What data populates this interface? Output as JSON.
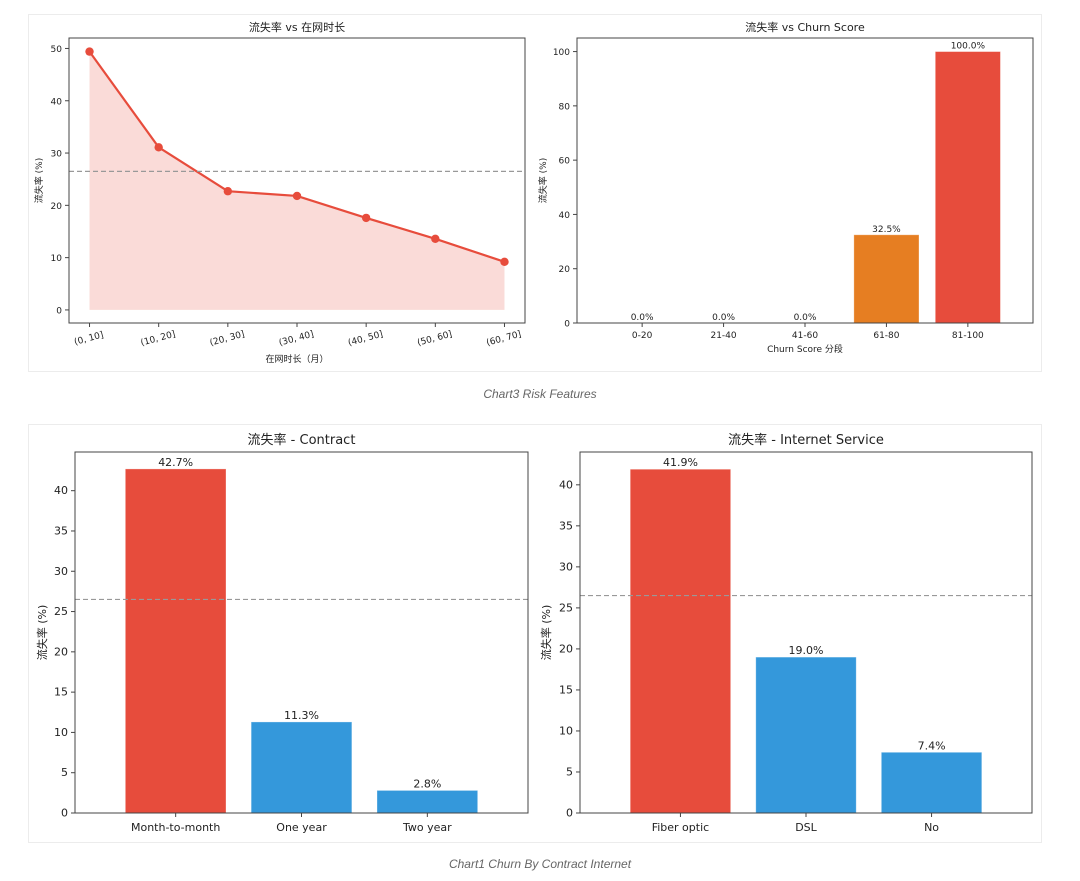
{
  "sections": [
    {
      "caption": "Chart3 Risk Features"
    },
    {
      "caption": "Chart1 Churn By Contract Internet"
    }
  ],
  "colors": {
    "red": "#e74c3c",
    "orange": "#e67e22",
    "blue": "#3498db",
    "fill": "#fadbd8",
    "reference": "#999999",
    "axis": "#444444"
  },
  "chart_data": [
    {
      "type": "line",
      "title": "流失率 vs 在网时长",
      "xlabel": "在网时长（月）",
      "ylabel": "流失率 (%)",
      "categories": [
        "(0, 10]",
        "(10, 20]",
        "(20, 30]",
        "(30, 40]",
        "(40, 50]",
        "(50, 60]",
        "(60, 70]"
      ],
      "values": [
        49.4,
        31.1,
        22.7,
        21.8,
        17.6,
        13.6,
        9.2
      ],
      "yticks": [
        0,
        10,
        20,
        30,
        40,
        50
      ],
      "ylim": [
        -2.5,
        52
      ],
      "reference_line": 26.5,
      "filled_area": true,
      "grid": false,
      "color": "#e74c3c"
    },
    {
      "type": "bar",
      "title": "流失率 vs Churn Score",
      "xlabel": "Churn Score 分段",
      "ylabel": "流失率 (%)",
      "categories": [
        "0-20",
        "21-40",
        "41-60",
        "61-80",
        "81-100"
      ],
      "values": [
        0.0,
        0.0,
        0.0,
        32.5,
        100.0
      ],
      "data_labels": [
        "0.0%",
        "0.0%",
        "0.0%",
        "32.5%",
        "100.0%"
      ],
      "bar_colors": [
        "#e74c3c",
        "#e74c3c",
        "#e74c3c",
        "#e67e22",
        "#e74c3c"
      ],
      "yticks": [
        0,
        20,
        40,
        60,
        80,
        100
      ],
      "ylim": [
        0,
        105
      ],
      "grid": false
    },
    {
      "type": "bar",
      "title": "流失率 - Contract",
      "xlabel": "",
      "ylabel": "流失率 (%)",
      "categories": [
        "Month-to-month",
        "One year",
        "Two year"
      ],
      "values": [
        42.7,
        11.3,
        2.8
      ],
      "data_labels": [
        "42.7%",
        "11.3%",
        "2.8%"
      ],
      "bar_colors": [
        "#e74c3c",
        "#3498db",
        "#3498db"
      ],
      "yticks": [
        0,
        5,
        10,
        15,
        20,
        25,
        30,
        35,
        40
      ],
      "ylim": [
        0,
        44.8
      ],
      "reference_line": 26.5,
      "grid": false
    },
    {
      "type": "bar",
      "title": "流失率 - Internet Service",
      "xlabel": "",
      "ylabel": "流失率 (%)",
      "categories": [
        "Fiber optic",
        "DSL",
        "No"
      ],
      "values": [
        41.9,
        19.0,
        7.4
      ],
      "data_labels": [
        "41.9%",
        "19.0%",
        "7.4%"
      ],
      "bar_colors": [
        "#e74c3c",
        "#3498db",
        "#3498db"
      ],
      "yticks": [
        0,
        5,
        10,
        15,
        20,
        25,
        30,
        35,
        40
      ],
      "ylim": [
        0,
        44.0
      ],
      "reference_line": 26.5,
      "grid": false
    }
  ]
}
